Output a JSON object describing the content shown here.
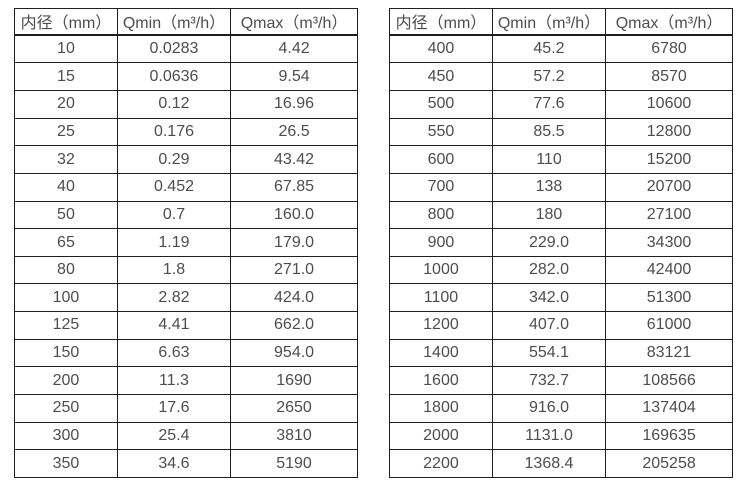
{
  "colors": {
    "background": "#ffffff",
    "border": "#1f1f1f",
    "text": "#4d4d4d"
  },
  "tables": [
    {
      "name": "flow-range-table-small-diameters",
      "headers": [
        "内径（mm）",
        "Qmin（m³/h）",
        "Qmax（m³/h）"
      ],
      "rows": [
        [
          "10",
          "0.0283",
          "4.42"
        ],
        [
          "15",
          "0.0636",
          "9.54"
        ],
        [
          "20",
          "0.12",
          "16.96"
        ],
        [
          "25",
          "0.176",
          "26.5"
        ],
        [
          "32",
          "0.29",
          "43.42"
        ],
        [
          "40",
          "0.452",
          "67.85"
        ],
        [
          "50",
          "0.7",
          "160.0"
        ],
        [
          "65",
          "1.19",
          "179.0"
        ],
        [
          "80",
          "1.8",
          "271.0"
        ],
        [
          "100",
          "2.82",
          "424.0"
        ],
        [
          "125",
          "4.41",
          "662.0"
        ],
        [
          "150",
          "6.63",
          "954.0"
        ],
        [
          "200",
          "11.3",
          "1690"
        ],
        [
          "250",
          "17.6",
          "2650"
        ],
        [
          "300",
          "25.4",
          "3810"
        ],
        [
          "350",
          "34.6",
          "5190"
        ]
      ]
    },
    {
      "name": "flow-range-table-large-diameters",
      "headers": [
        "内径（mm）",
        "Qmin（m³/h）",
        "Qmax（m³/h）"
      ],
      "rows": [
        [
          "400",
          "45.2",
          "6780"
        ],
        [
          "450",
          "57.2",
          "8570"
        ],
        [
          "500",
          "77.6",
          "10600"
        ],
        [
          "550",
          "85.5",
          "12800"
        ],
        [
          "600",
          "110",
          "15200"
        ],
        [
          "700",
          "138",
          "20700"
        ],
        [
          "800",
          "180",
          "27100"
        ],
        [
          "900",
          "229.0",
          "34300"
        ],
        [
          "1000",
          "282.0",
          "42400"
        ],
        [
          "1100",
          "342.0",
          "51300"
        ],
        [
          "1200",
          "407.0",
          "61000"
        ],
        [
          "1400",
          "554.1",
          "83121"
        ],
        [
          "1600",
          "732.7",
          "108566"
        ],
        [
          "1800",
          "916.0",
          "137404"
        ],
        [
          "2000",
          "1131.0",
          "169635"
        ],
        [
          "2200",
          "1368.4",
          "205258"
        ]
      ]
    }
  ]
}
